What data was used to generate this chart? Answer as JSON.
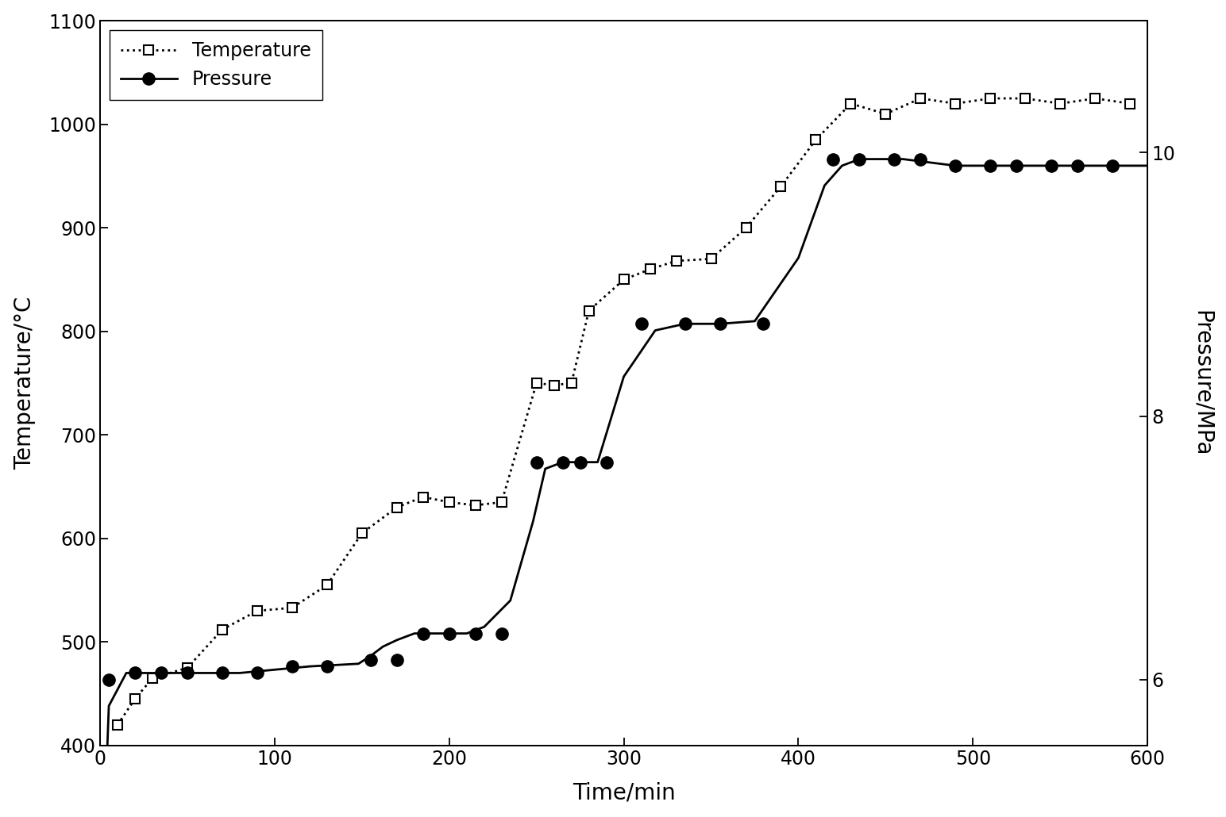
{
  "xlabel": "Time/min",
  "ylabel_left": "Temperature/°C",
  "ylabel_right": "Pressure/MPa",
  "xlim": [
    0,
    600
  ],
  "ylim_left": [
    400,
    1100
  ],
  "ylim_right": [
    5.5,
    11.0
  ],
  "yticks_left": [
    400,
    500,
    600,
    700,
    800,
    900,
    1000,
    1100
  ],
  "yticks_right": [
    6,
    8,
    10
  ],
  "xticks": [
    0,
    100,
    200,
    300,
    400,
    500,
    600
  ],
  "temp_x": [
    10,
    20,
    30,
    50,
    70,
    90,
    110,
    130,
    150,
    170,
    185,
    200,
    215,
    230,
    250,
    260,
    270,
    280,
    300,
    315,
    330,
    350,
    370,
    390,
    410,
    430,
    450,
    470,
    490,
    510,
    530,
    550,
    570,
    590
  ],
  "temp_y": [
    420,
    445,
    465,
    475,
    512,
    530,
    533,
    555,
    605,
    630,
    640,
    635,
    632,
    635,
    750,
    748,
    750,
    820,
    850,
    860,
    868,
    870,
    900,
    940,
    985,
    1020,
    1010,
    1025,
    1020,
    1025,
    1025,
    1020,
    1025,
    1020
  ],
  "pressure_x": [
    5,
    20,
    35,
    50,
    70,
    90,
    110,
    130,
    155,
    170,
    185,
    200,
    215,
    230,
    250,
    265,
    275,
    290,
    310,
    335,
    355,
    380,
    420,
    435,
    455,
    470,
    490,
    510,
    525,
    545,
    560,
    580
  ],
  "pressure_y": [
    6.0,
    6.05,
    6.05,
    6.05,
    6.05,
    6.05,
    6.1,
    6.1,
    6.15,
    6.15,
    6.35,
    6.35,
    6.35,
    6.35,
    7.65,
    7.65,
    7.65,
    7.65,
    8.7,
    8.7,
    8.7,
    8.7,
    9.95,
    9.95,
    9.95,
    9.95,
    9.9,
    9.9,
    9.9,
    9.9,
    9.9,
    9.9
  ],
  "pressure_smooth_x": [
    0,
    5,
    15,
    30,
    50,
    80,
    120,
    148,
    155,
    162,
    170,
    180,
    190,
    200,
    210,
    220,
    235,
    248,
    255,
    265,
    275,
    285,
    300,
    318,
    335,
    355,
    375,
    400,
    415,
    425,
    435,
    460,
    490,
    520,
    560,
    600
  ],
  "pressure_smooth_y": [
    4.0,
    5.8,
    6.05,
    6.05,
    6.05,
    6.05,
    6.1,
    6.12,
    6.18,
    6.25,
    6.3,
    6.35,
    6.35,
    6.35,
    6.35,
    6.4,
    6.6,
    7.2,
    7.6,
    7.65,
    7.65,
    7.65,
    8.3,
    8.65,
    8.7,
    8.7,
    8.72,
    9.2,
    9.75,
    9.9,
    9.95,
    9.95,
    9.9,
    9.9,
    9.9,
    9.9
  ],
  "background_color": "#ffffff"
}
